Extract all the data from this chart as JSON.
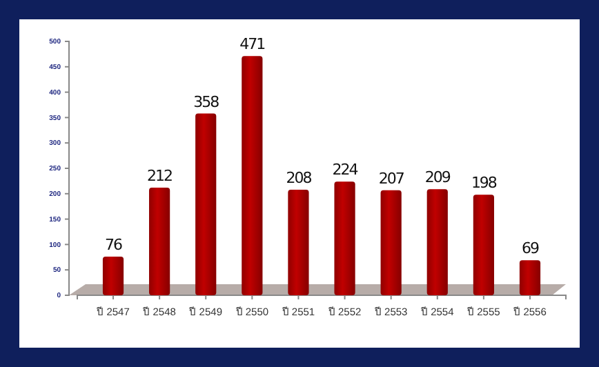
{
  "chart_data": {
    "type": "bar",
    "categories": [
      "ปี 2547",
      "ปี 2548",
      "ปี 2549",
      "ปี 2550",
      "ปี 2551",
      "ปี 2552",
      "ปี 2553",
      "ปี 2554",
      "ปี 2555",
      "ปี 2556"
    ],
    "values": [
      76,
      212,
      358,
      471,
      208,
      224,
      207,
      209,
      198,
      69
    ],
    "color": "#c00000",
    "ylim": [
      0,
      500
    ],
    "yticks": [
      0,
      50,
      100,
      150,
      200,
      250,
      300,
      350,
      400,
      450,
      500
    ],
    "data_labels": true
  }
}
